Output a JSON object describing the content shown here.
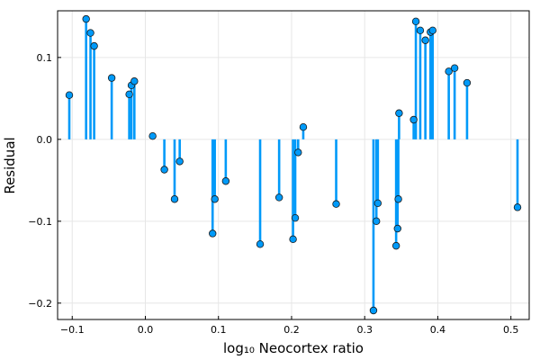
{
  "chart_data": {
    "type": "stem",
    "xlabel": "log₁₀ Neocortex ratio",
    "ylabel": "Residual",
    "xlim": [
      -0.12,
      0.525
    ],
    "ylim": [
      -0.22,
      0.157
    ],
    "xticks": [
      -0.1,
      0.0,
      0.1,
      0.2,
      0.3,
      0.4,
      0.5
    ],
    "xtick_labels": [
      "−0.1",
      "0.0",
      "0.1",
      "0.2",
      "0.3",
      "0.4",
      "0.5"
    ],
    "yticks": [
      -0.2,
      -0.1,
      0.0,
      0.1
    ],
    "ytick_labels": [
      "−0.2",
      "−0.1",
      "0.0",
      "0.1"
    ],
    "grid": true,
    "baseline": 0,
    "colors": {
      "stem": "#009af9",
      "marker_fill": "#009af9",
      "marker_edge": "#1a1a1a",
      "grid": "#e6e6e6"
    },
    "points": [
      {
        "x": -0.104,
        "y": 0.054
      },
      {
        "x": -0.081,
        "y": 0.147
      },
      {
        "x": -0.075,
        "y": 0.13
      },
      {
        "x": -0.07,
        "y": 0.114
      },
      {
        "x": -0.046,
        "y": 0.075
      },
      {
        "x": -0.022,
        "y": 0.055
      },
      {
        "x": -0.019,
        "y": 0.066
      },
      {
        "x": -0.015,
        "y": 0.071
      },
      {
        "x": 0.01,
        "y": 0.004
      },
      {
        "x": 0.026,
        "y": -0.037
      },
      {
        "x": 0.04,
        "y": -0.073
      },
      {
        "x": 0.047,
        "y": -0.027
      },
      {
        "x": 0.092,
        "y": -0.115
      },
      {
        "x": 0.095,
        "y": -0.073
      },
      {
        "x": 0.11,
        "y": -0.051
      },
      {
        "x": 0.157,
        "y": -0.128
      },
      {
        "x": 0.183,
        "y": -0.071
      },
      {
        "x": 0.202,
        "y": -0.122
      },
      {
        "x": 0.205,
        "y": -0.096
      },
      {
        "x": 0.209,
        "y": -0.016
      },
      {
        "x": 0.216,
        "y": 0.015
      },
      {
        "x": 0.261,
        "y": -0.079
      },
      {
        "x": 0.312,
        "y": -0.209
      },
      {
        "x": 0.316,
        "y": -0.1
      },
      {
        "x": 0.318,
        "y": -0.078
      },
      {
        "x": 0.343,
        "y": -0.13
      },
      {
        "x": 0.345,
        "y": -0.109
      },
      {
        "x": 0.346,
        "y": -0.073
      },
      {
        "x": 0.347,
        "y": 0.032
      },
      {
        "x": 0.367,
        "y": 0.024
      },
      {
        "x": 0.37,
        "y": 0.144
      },
      {
        "x": 0.376,
        "y": 0.133
      },
      {
        "x": 0.383,
        "y": 0.121
      },
      {
        "x": 0.39,
        "y": 0.131
      },
      {
        "x": 0.393,
        "y": 0.133
      },
      {
        "x": 0.415,
        "y": 0.083
      },
      {
        "x": 0.423,
        "y": 0.087
      },
      {
        "x": 0.44,
        "y": 0.069
      },
      {
        "x": 0.509,
        "y": -0.083
      }
    ]
  }
}
